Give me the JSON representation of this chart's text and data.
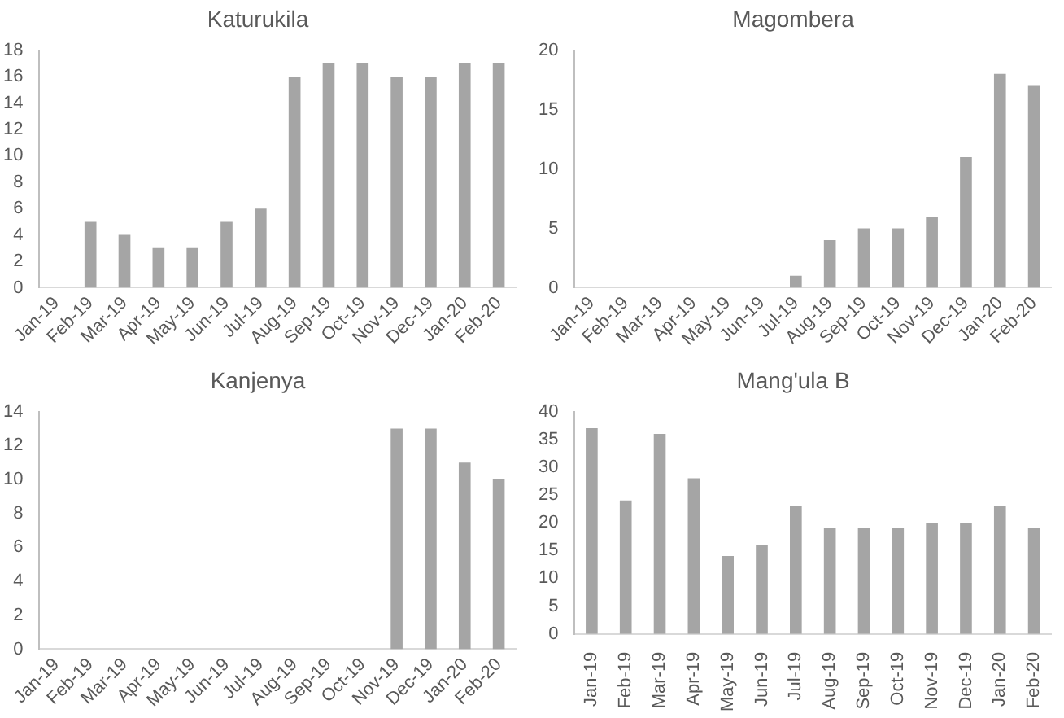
{
  "chart_data": [
    {
      "type": "bar",
      "title": "Katurukila",
      "categories": [
        "Jan-19",
        "Feb-19",
        "Mar-19",
        "Apr-19",
        "May-19",
        "Jun-19",
        "Jul-19",
        "Aug-19",
        "Sep-19",
        "Oct-19",
        "Nov-19",
        "Dec-19",
        "Jan-20",
        "Feb-20"
      ],
      "values": [
        0,
        5,
        4,
        3,
        3,
        5,
        6,
        16,
        17,
        17,
        16,
        16,
        17,
        17
      ],
      "color": "#a5a5a5",
      "ylim": [
        0,
        18
      ],
      "yticks": [
        0,
        2,
        4,
        6,
        8,
        10,
        12,
        14,
        16,
        18
      ],
      "grid": false,
      "legend": false
    },
    {
      "type": "bar",
      "title": "Magombera",
      "categories": [
        "Jan-19",
        "Feb-19",
        "Mar-19",
        "Apr-19",
        "May-19",
        "Jun-19",
        "Jul-19",
        "Aug-19",
        "Sep-19",
        "Oct-19",
        "Nov-19",
        "Dec-19",
        "Jan-20",
        "Feb-20"
      ],
      "values": [
        0,
        0,
        0,
        0,
        0,
        0,
        1,
        4,
        5,
        5,
        6,
        11,
        18,
        17
      ],
      "color": "#a5a5a5",
      "ylim": [
        0,
        20
      ],
      "yticks": [
        0,
        5,
        10,
        15,
        20
      ],
      "grid": false,
      "legend": false
    },
    {
      "type": "bar",
      "title": "Kanjenya",
      "categories": [
        "Jan-19",
        "Feb-19",
        "Mar-19",
        "Apr-19",
        "May-19",
        "Jun-19",
        "Jul-19",
        "Aug-19",
        "Sep-19",
        "Oct-19",
        "Nov-19",
        "Dec-19",
        "Jan-20",
        "Feb-20"
      ],
      "values": [
        0,
        0,
        0,
        0,
        0,
        0,
        0,
        0,
        0,
        0,
        13,
        13,
        11,
        10
      ],
      "color": "#a5a5a5",
      "ylim": [
        0,
        14
      ],
      "yticks": [
        0,
        2,
        4,
        6,
        8,
        10,
        12,
        14
      ],
      "grid": false,
      "legend": false
    },
    {
      "type": "bar",
      "title": "Mang'ula B",
      "categories": [
        "Jan-19",
        "Feb-19",
        "Mar-19",
        "Apr-19",
        "May-19",
        "Jun-19",
        "Jul-19",
        "Aug-19",
        "Sep-19",
        "Oct-19",
        "Nov-19",
        "Dec-19",
        "Jan-20",
        "Feb-20"
      ],
      "values": [
        37,
        24,
        36,
        28,
        14,
        16,
        23,
        19,
        19,
        19,
        20,
        20,
        23,
        19
      ],
      "color": "#a5a5a5",
      "ylim": [
        0,
        40
      ],
      "yticks": [
        0,
        5,
        10,
        15,
        20,
        25,
        30,
        35,
        40
      ],
      "grid": false,
      "legend": false
    }
  ]
}
